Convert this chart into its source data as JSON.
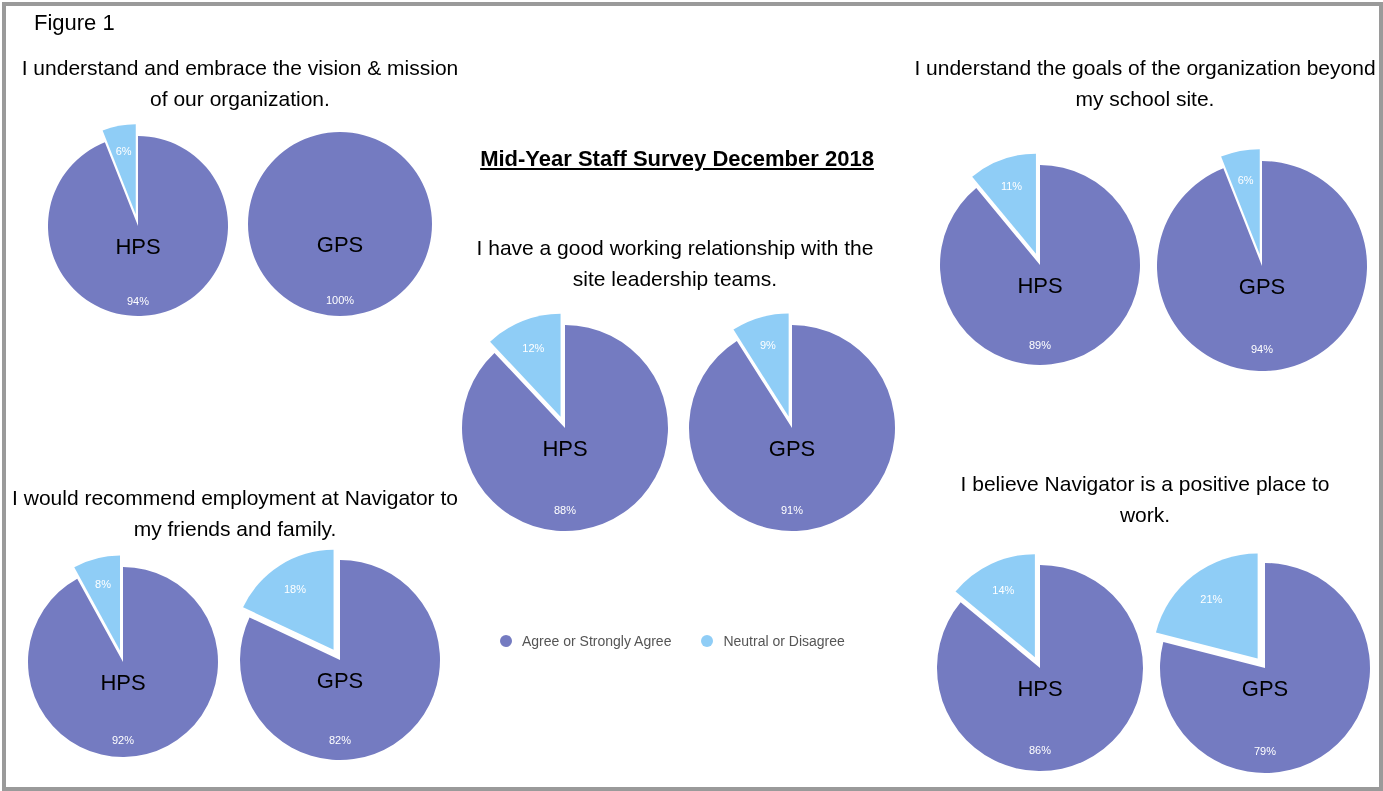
{
  "chart_data": [
    {
      "type": "other",
      "title": "Mid-Year Staff Survey December 2018",
      "annotations": [
        "Figure 1"
      ]
    },
    {
      "type": "pie",
      "title": "I understand and embrace the vision & mission of our organization.",
      "annotations": [
        "HPS"
      ],
      "categories": [
        null,
        null
      ],
      "values": [
        94,
        6
      ],
      "value_labels": [
        "94%",
        "6%"
      ],
      "colors": [
        "#747bc1",
        "#8fcdf6"
      ]
    },
    {
      "type": "pie",
      "annotations": [
        "GPS"
      ],
      "categories": [
        null,
        null
      ],
      "values": [
        100,
        0
      ],
      "value_labels": [
        "100%",
        null
      ],
      "colors": [
        "#747bc1",
        "#8fcdf6"
      ]
    },
    {
      "type": "pie",
      "title": "I understand the goals of the organization beyond my school site.",
      "annotations": [
        "HPS"
      ],
      "categories": [
        null,
        null
      ],
      "values": [
        89,
        11
      ],
      "value_labels": [
        "89%",
        "11%"
      ],
      "colors": [
        "#747bc1",
        "#8fcdf6"
      ]
    },
    {
      "type": "pie",
      "annotations": [
        "GPS"
      ],
      "categories": [
        null,
        null
      ],
      "values": [
        94,
        6
      ],
      "value_labels": [
        "94%",
        "6%"
      ],
      "colors": [
        "#747bc1",
        "#8fcdf6"
      ]
    },
    {
      "type": "pie",
      "title": "I have a good working relationship with the site leadership teams.",
      "annotations": [
        "HPS"
      ],
      "categories": [
        null,
        null
      ],
      "values": [
        88,
        12
      ],
      "value_labels": [
        "88%",
        "12%"
      ],
      "colors": [
        "#747bc1",
        "#8fcdf6"
      ]
    },
    {
      "type": "pie",
      "annotations": [
        "GPS"
      ],
      "categories": [
        "Agree or Strongly Agree",
        "Neutral or Disagree"
      ],
      "values": [
        91,
        9
      ],
      "value_labels": [
        "91%",
        "9%"
      ],
      "colors": [
        "#747bc1",
        "#8fcdf6"
      ],
      "legend": "bottom"
    },
    {
      "type": "pie",
      "title": "I would recommend employment at Navigator to my friends and family.",
      "annotations": [
        "HPS"
      ],
      "categories": [
        null,
        null
      ],
      "values": [
        92,
        8
      ],
      "value_labels": [
        "92%",
        "8%"
      ],
      "colors": [
        "#747bc1",
        "#8fcdf6"
      ]
    },
    {
      "type": "pie",
      "annotations": [
        "GPS"
      ],
      "categories": [
        null,
        null
      ],
      "values": [
        82,
        18
      ],
      "value_labels": [
        "82%",
        "18%"
      ],
      "colors": [
        "#747bc1",
        "#8fcdf6"
      ]
    },
    {
      "type": "pie",
      "title": "I believe Navigator is a positive place to work.",
      "annotations": [
        "HPS"
      ],
      "categories": [
        null,
        null
      ],
      "values": [
        86,
        14
      ],
      "value_labels": [
        "86%",
        "14%"
      ],
      "colors": [
        "#747bc1",
        "#8fcdf6"
      ]
    },
    {
      "type": "pie",
      "annotations": [
        "GPS"
      ],
      "categories": [
        null,
        null
      ],
      "values": [
        79,
        21
      ],
      "value_labels": [
        "79%",
        "21%"
      ],
      "colors": [
        "#747bc1",
        "#8fcdf6"
      ]
    }
  ]
}
